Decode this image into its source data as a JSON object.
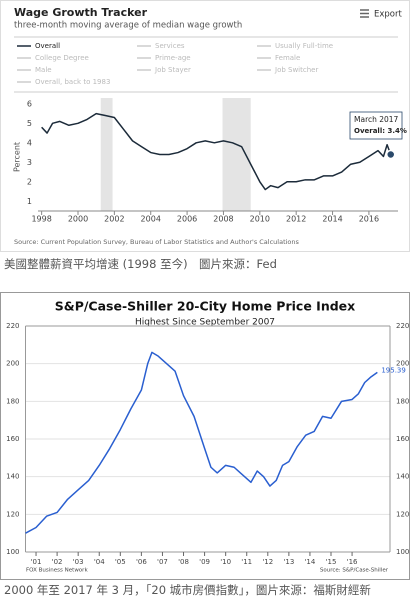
{
  "chart_data": [
    {
      "type": "line",
      "title": "Wage Growth Tracker",
      "subtitle": "three-month moving average of median wage growth",
      "export_label": "Export",
      "y_label": "Percent",
      "legend": [
        "Overall",
        "Services",
        "Usually Full-time",
        "College Degree",
        "Prime-age",
        "Female",
        "Male",
        "Job Stayer",
        "Job Switcher",
        "Overall, back to 1983"
      ],
      "x": [
        1998.0,
        1998.3,
        1998.6,
        1999.0,
        1999.5,
        2000.0,
        2000.5,
        2001.0,
        2001.5,
        2002.0,
        2002.5,
        2003.0,
        2003.5,
        2004.0,
        2004.5,
        2005.0,
        2005.5,
        2006.0,
        2006.5,
        2007.0,
        2007.5,
        2008.0,
        2008.5,
        2009.0,
        2009.5,
        2010.0,
        2010.3,
        2010.6,
        2011.0,
        2011.5,
        2012.0,
        2012.5,
        2013.0,
        2013.5,
        2014.0,
        2014.5,
        2015.0,
        2015.5,
        2016.0,
        2016.5,
        2016.8,
        2017.0,
        2017.2
      ],
      "series": [
        {
          "legend_index": 0,
          "color": "#1c2b3a",
          "values": [
            4.8,
            4.5,
            5.0,
            5.1,
            4.9,
            5.0,
            5.2,
            5.5,
            5.4,
            5.3,
            4.7,
            4.1,
            3.8,
            3.5,
            3.4,
            3.4,
            3.5,
            3.7,
            4.0,
            4.1,
            4.0,
            4.1,
            4.0,
            3.8,
            2.9,
            2.0,
            1.6,
            1.8,
            1.7,
            2.0,
            2.0,
            2.1,
            2.1,
            2.3,
            2.3,
            2.5,
            2.9,
            3.0,
            3.3,
            3.6,
            3.3,
            3.9,
            3.4
          ]
        }
      ],
      "recessions": [
        [
          2001.25,
          2001.9
        ],
        [
          2007.95,
          2009.5
        ]
      ],
      "xlim": [
        1997.8,
        2017.6
      ],
      "xticks": [
        1998,
        2000,
        2002,
        2004,
        2006,
        2008,
        2010,
        2012,
        2014,
        2016
      ],
      "ylim": [
        0.5,
        6.3
      ],
      "yticks": [
        1,
        2,
        3,
        4,
        5,
        6
      ],
      "grid": false,
      "tooltip": {
        "title": "March 2017",
        "text": "Overall: 3.4%"
      },
      "source": "Source: Current Population Survey, Bureau of Labor Statistics and Author's Calculations",
      "caption": "美國整體薪資平均增速 (1998 至今)　圖片來源：Fed"
    },
    {
      "type": "line",
      "title": "S&P/Case-Shiller 20-City Home Price Index",
      "subtitle": "Highest Since September 2007",
      "x": [
        2000.5,
        2001.0,
        2001.5,
        2002.0,
        2002.5,
        2003.0,
        2003.5,
        2004.0,
        2004.5,
        2005.0,
        2005.5,
        2006.0,
        2006.3,
        2006.5,
        2006.8,
        2007.2,
        2007.6,
        2008.0,
        2008.5,
        2009.0,
        2009.3,
        2009.6,
        2010.0,
        2010.4,
        2010.7,
        2011.0,
        2011.2,
        2011.5,
        2011.8,
        2012.1,
        2012.4,
        2012.7,
        2013.0,
        2013.4,
        2013.8,
        2014.2,
        2014.6,
        2015.0,
        2015.5,
        2016.0,
        2016.3,
        2016.6,
        2016.9,
        2017.2
      ],
      "series": [
        {
          "color": "#2a5fd0",
          "values": [
            110,
            113,
            119,
            121,
            128,
            133,
            138,
            146,
            155,
            165,
            176,
            186,
            200,
            206,
            204,
            200,
            196,
            183,
            172,
            155,
            145,
            142,
            146,
            145,
            142,
            139,
            137,
            143,
            140,
            135,
            138,
            146,
            148,
            156,
            162,
            164,
            172,
            171,
            180,
            181,
            184,
            190,
            193,
            195.39
          ]
        }
      ],
      "xlim": [
        2000.5,
        2017.8
      ],
      "xticks": [
        {
          "value": 2001,
          "label": "'01"
        },
        {
          "value": 2002,
          "label": "'02"
        },
        {
          "value": 2003,
          "label": "'03"
        },
        {
          "value": 2004,
          "label": "'04"
        },
        {
          "value": 2005,
          "label": "'05"
        },
        {
          "value": 2006,
          "label": "'06"
        },
        {
          "value": 2007,
          "label": "'07"
        },
        {
          "value": 2008,
          "label": "'08"
        },
        {
          "value": 2009,
          "label": "'09"
        },
        {
          "value": 2010,
          "label": "'10"
        },
        {
          "value": 2011,
          "label": "'11"
        },
        {
          "value": 2012,
          "label": "'12"
        },
        {
          "value": 2013,
          "label": "'13"
        },
        {
          "value": 2014,
          "label": "'14"
        },
        {
          "value": 2015,
          "label": "'15"
        },
        {
          "value": 2016,
          "label": "'16"
        }
      ],
      "ylim": [
        100,
        220
      ],
      "yticks": [
        100,
        120,
        140,
        160,
        180,
        200,
        220
      ],
      "grid": true,
      "mirror_y_labels": true,
      "network": "FOX Business Network",
      "source": "Source: S&P/Case-Shiller",
      "caption": "2000 年至 2017 年 3 月，「20 城市房價指數」，圖片來源：福斯財經新"
    }
  ]
}
